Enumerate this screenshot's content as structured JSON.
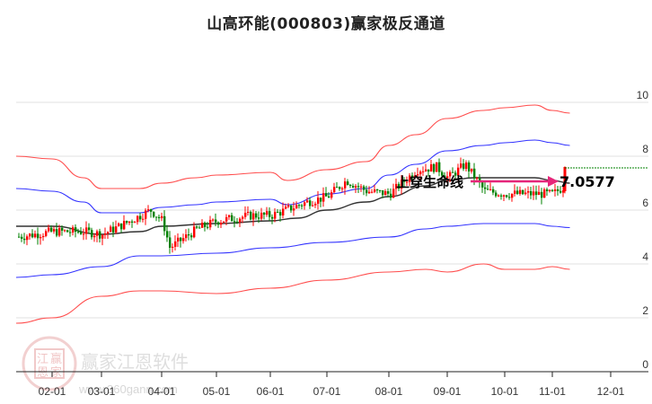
{
  "title": "山高环能(000803)赢家极反通道",
  "watermark": {
    "brand": "赢家江恩软件",
    "url": "www.360gann.com",
    "seal_chars": [
      "江",
      "赢",
      "恩",
      "家"
    ]
  },
  "annotations": {
    "signal_label": "上穿生命线",
    "last_price_label": "7.0577"
  },
  "colors": {
    "up_candle": "#ff0000",
    "down_candle": "#008000",
    "outer_band": "#ff4d4d",
    "inner_band": "#3333ff",
    "life_line": "#333333",
    "arrow": "#e6267a",
    "last_price_line": "#008000",
    "grid": "#e0e0e0"
  },
  "chart_data": {
    "type": "candlestick",
    "title": "山高环能(000803)赢家极反通道",
    "xlabel": "",
    "ylabel": "",
    "ylim": [
      0,
      10
    ],
    "yticks": [
      0,
      2,
      4,
      6,
      8,
      10
    ],
    "xticks": [
      "02-01",
      "03-01",
      "04-01",
      "05-01",
      "06-01",
      "07-01",
      "08-01",
      "09-01",
      "10-01",
      "11-01",
      "12-01"
    ],
    "grid": true,
    "legend": "none",
    "last_price": 7.0577,
    "series": [
      {
        "name": "outer_upper",
        "color": "#ff4d4d",
        "x": [
          "01-10",
          "02-01",
          "02-20",
          "03-01",
          "03-20",
          "04-01",
          "04-20",
          "05-01",
          "06-01",
          "06-10",
          "07-01",
          "07-20",
          "08-01",
          "08-15",
          "09-01",
          "09-20",
          "10-01",
          "10-20",
          "11-01",
          "11-10"
        ],
        "values": [
          8.0,
          7.9,
          7.2,
          6.8,
          6.8,
          7.0,
          7.2,
          7.3,
          7.4,
          7.1,
          7.5,
          7.8,
          8.4,
          8.8,
          9.4,
          9.7,
          9.8,
          9.9,
          9.7,
          9.6
        ]
      },
      {
        "name": "inner_upper",
        "color": "#3333ff",
        "x": [
          "01-10",
          "02-01",
          "02-20",
          "03-01",
          "03-20",
          "04-01",
          "04-20",
          "05-01",
          "06-01",
          "06-10",
          "07-01",
          "07-20",
          "08-01",
          "08-15",
          "09-01",
          "09-20",
          "10-01",
          "10-20",
          "11-01",
          "11-10"
        ],
        "values": [
          6.8,
          6.7,
          6.3,
          5.9,
          5.9,
          6.1,
          6.2,
          6.3,
          6.4,
          6.2,
          6.6,
          6.8,
          7.3,
          7.7,
          8.2,
          8.4,
          8.5,
          8.6,
          8.5,
          8.4
        ]
      },
      {
        "name": "life_line",
        "color": "#333333",
        "x": [
          "01-10",
          "02-01",
          "03-01",
          "03-20",
          "04-01",
          "05-01",
          "06-01",
          "06-15",
          "07-01",
          "07-20",
          "08-01",
          "08-20",
          "09-01",
          "09-15",
          "10-01",
          "10-20",
          "11-01",
          "11-10"
        ],
        "values": [
          5.4,
          5.4,
          5.1,
          5.2,
          5.4,
          5.5,
          5.6,
          5.7,
          6.0,
          6.3,
          6.5,
          6.9,
          7.1,
          7.2,
          7.2,
          7.2,
          7.1,
          7.0
        ]
      },
      {
        "name": "inner_lower",
        "color": "#3333ff",
        "x": [
          "01-10",
          "02-01",
          "03-01",
          "03-20",
          "04-01",
          "05-01",
          "06-01",
          "07-01",
          "08-01",
          "08-20",
          "09-01",
          "09-20",
          "10-01",
          "10-20",
          "11-01",
          "11-10"
        ],
        "values": [
          3.5,
          3.6,
          3.9,
          4.3,
          4.3,
          4.4,
          4.6,
          4.8,
          5.0,
          5.3,
          5.4,
          5.5,
          5.5,
          5.5,
          5.4,
          5.35
        ]
      },
      {
        "name": "outer_lower",
        "color": "#ff4d4d",
        "x": [
          "01-10",
          "02-01",
          "03-01",
          "03-20",
          "04-01",
          "05-01",
          "06-01",
          "07-01",
          "08-01",
          "08-20",
          "09-01",
          "09-20",
          "10-01",
          "10-20",
          "11-01",
          "11-10"
        ],
        "values": [
          1.8,
          2.0,
          2.8,
          3.0,
          3.0,
          2.9,
          3.1,
          3.4,
          3.7,
          3.8,
          3.7,
          4.0,
          3.8,
          3.8,
          3.9,
          3.8
        ]
      },
      {
        "name": "close_approx",
        "color": "#000000",
        "x": [
          "01-10",
          "02-01",
          "02-20",
          "03-01",
          "03-15",
          "03-25",
          "04-01",
          "04-05",
          "04-20",
          "05-01",
          "05-20",
          "06-01",
          "06-20",
          "07-01",
          "07-10",
          "07-20",
          "08-01",
          "08-15",
          "08-25",
          "09-01",
          "09-10",
          "09-20",
          "10-01",
          "10-15",
          "11-01",
          "11-10"
        ],
        "values": [
          5.0,
          5.2,
          5.2,
          5.1,
          5.6,
          6.0,
          5.6,
          4.6,
          5.3,
          5.6,
          5.8,
          5.8,
          6.3,
          6.5,
          7.1,
          6.7,
          6.6,
          7.5,
          7.6,
          7.2,
          7.7,
          6.7,
          6.6,
          6.6,
          6.6,
          7.06
        ]
      }
    ]
  }
}
